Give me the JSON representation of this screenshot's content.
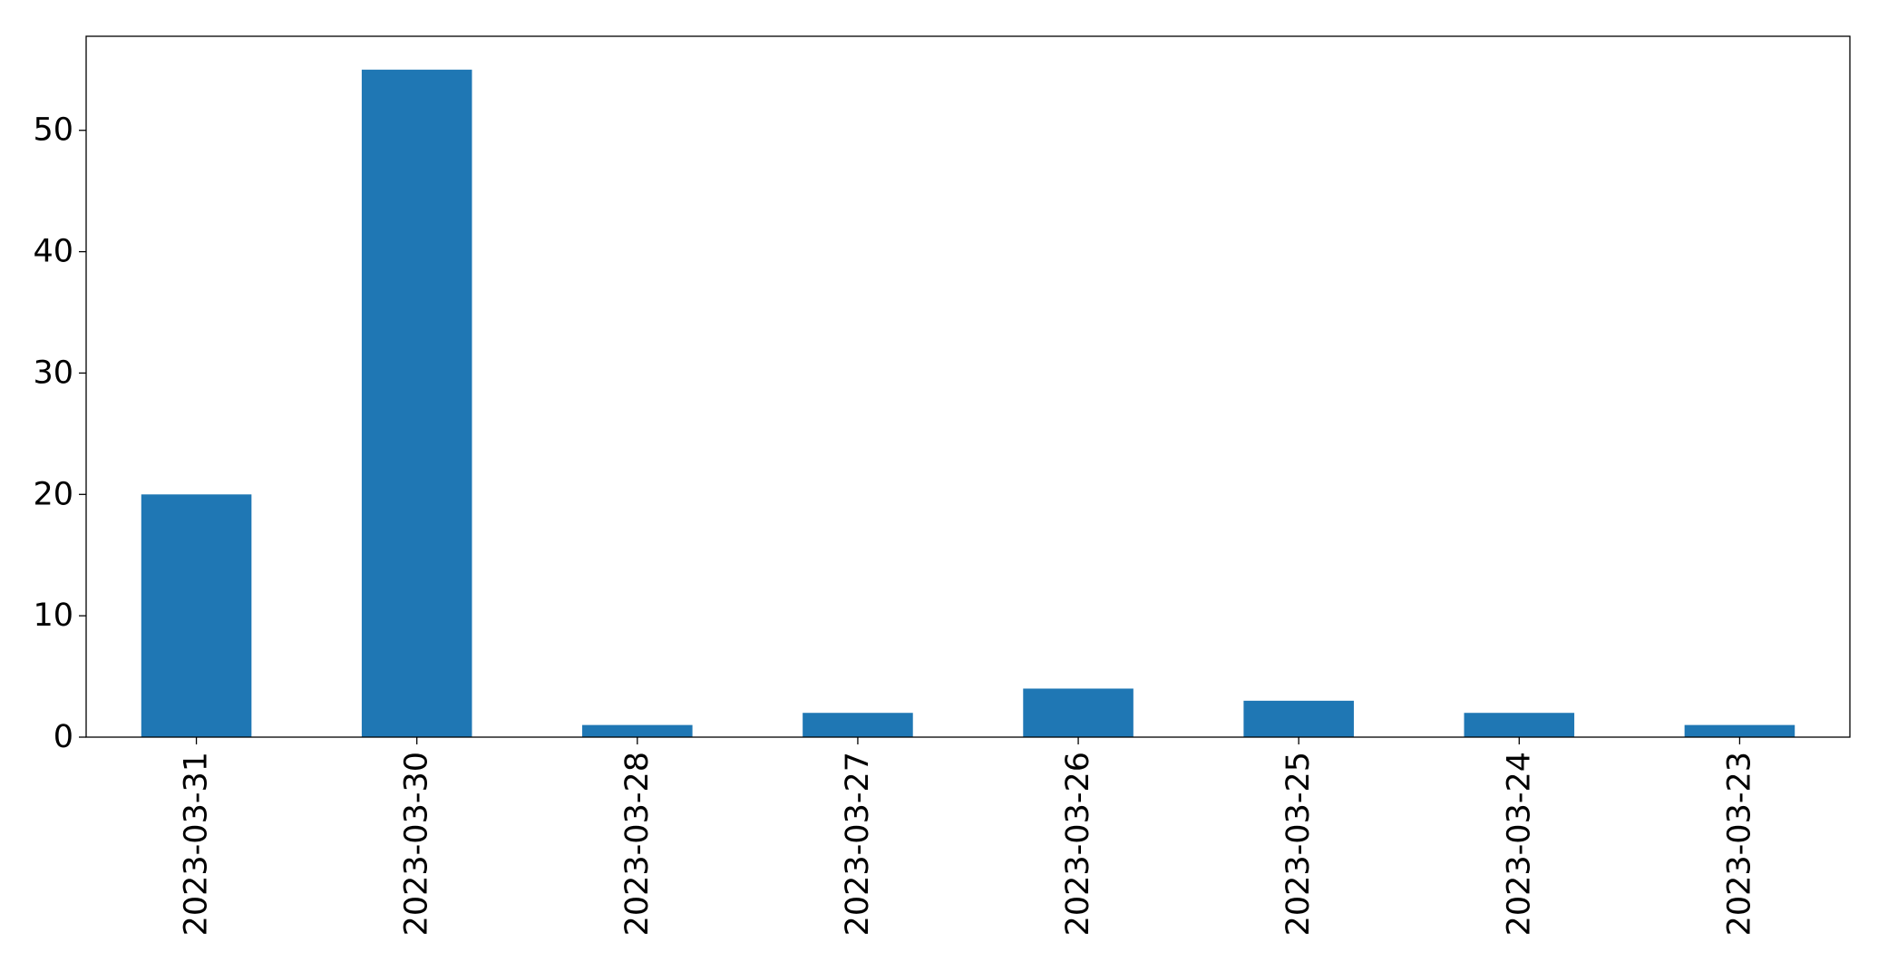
{
  "chart_data": {
    "type": "bar",
    "categories": [
      "2023-03-31",
      "2023-03-30",
      "2023-03-28",
      "2023-03-27",
      "2023-03-26",
      "2023-03-25",
      "2023-03-24",
      "2023-03-23"
    ],
    "values": [
      20,
      55,
      1,
      2,
      4,
      3,
      2,
      1
    ],
    "title": "",
    "xlabel": "",
    "ylabel": "",
    "ylim": [
      0,
      57.75
    ],
    "yticks": [
      0,
      10,
      20,
      30,
      40,
      50
    ],
    "grid": false,
    "bar_color": "#1f77b4",
    "x_tick_rotation": "vertical"
  }
}
